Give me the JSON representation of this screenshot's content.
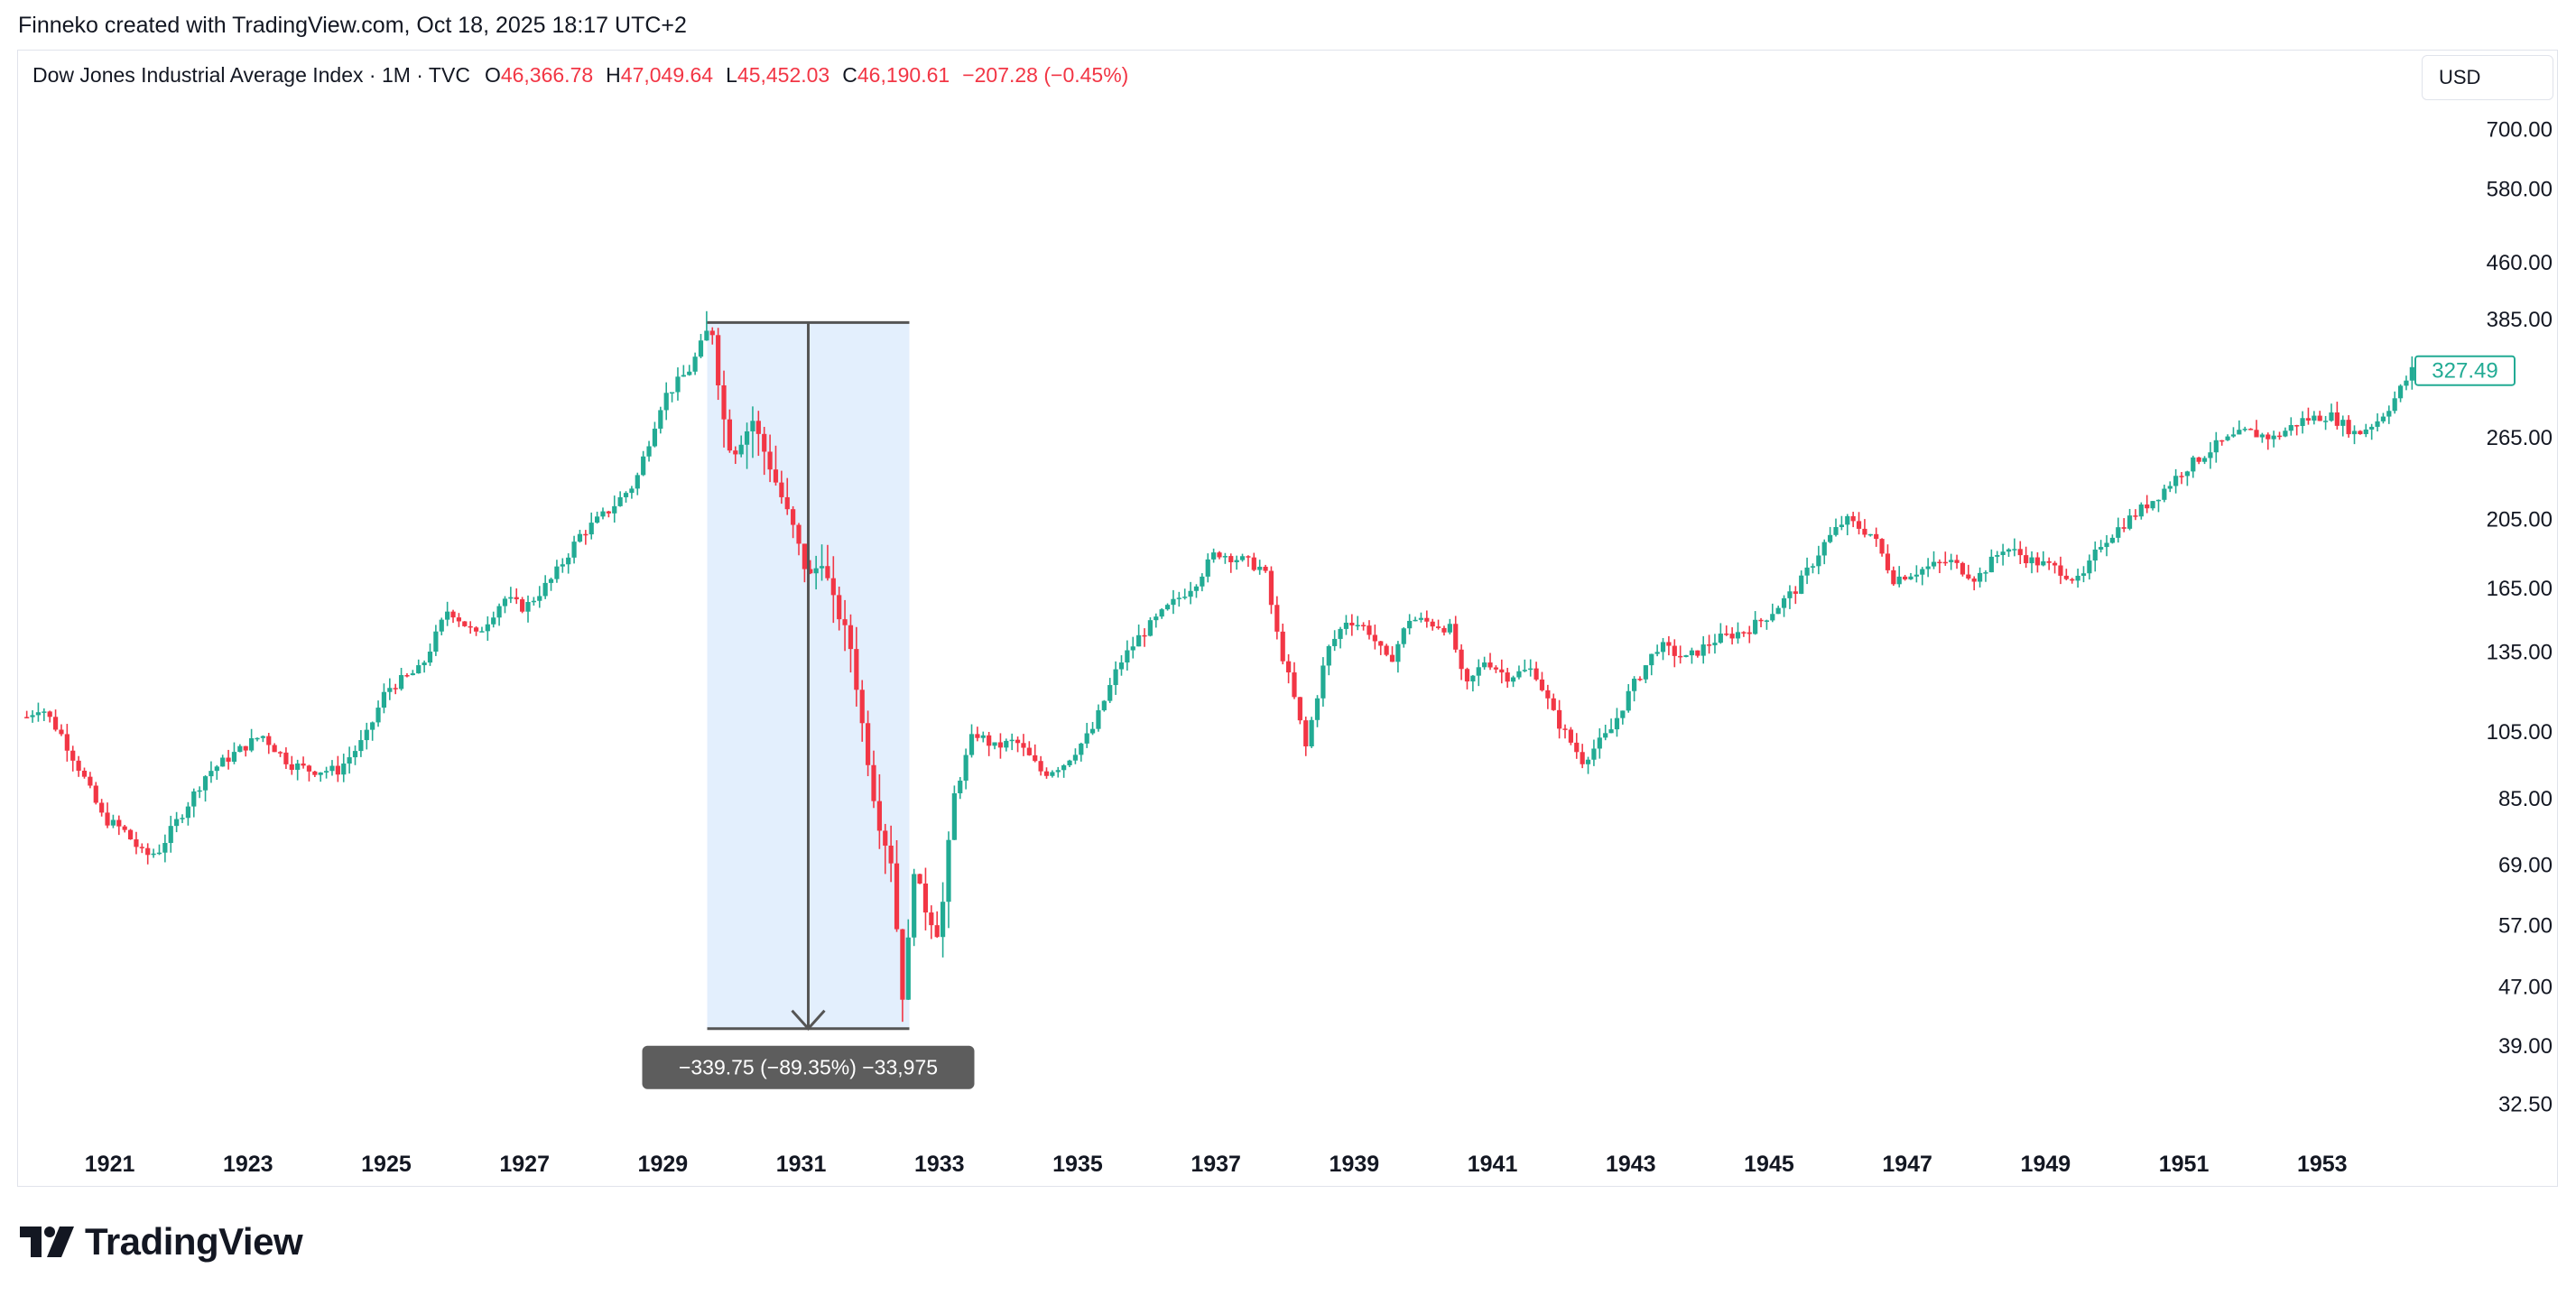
{
  "header": {
    "caption": "Finneko created with TradingView.com, Oct 18, 2025 18:17 UTC+2"
  },
  "legend": {
    "symbol": "Dow Jones Industrial Average Index · 1M · TVC",
    "open_label": "O",
    "open_value": "46,366.78",
    "high_label": "H",
    "high_value": "47,049.64",
    "low_label": "L",
    "low_value": "45,452.03",
    "close_label": "C",
    "close_value": "46,190.61",
    "change": "−207.28 (−0.45%)"
  },
  "currency_button": "USD",
  "brand": {
    "name": "TradingView",
    "logo_icon": "tradingview-logo-icon"
  },
  "measure": {
    "label": "−339.75 (−89.35%) −33,975",
    "from_date": 1929.72,
    "to_date": 1932.5,
    "from_value": 381.17,
    "to_value": 41.22
  },
  "colors": {
    "up": "#22ab94",
    "down": "#f23645",
    "measure_fill": "#e3effd",
    "measure_line": "#555555",
    "label_bg": "#5d5d5d",
    "price_tag": "#22ab94"
  },
  "chart_data": {
    "type": "candlestick",
    "scale": "log",
    "x_axis_ticks": [
      "1921",
      "1923",
      "1925",
      "1927",
      "1929",
      "1931",
      "1933",
      "1935",
      "1937",
      "1939",
      "1941",
      "1943",
      "1945",
      "1947",
      "1949",
      "1951",
      "1953"
    ],
    "y_axis_ticks": [
      "700.00",
      "580.00",
      "460.00",
      "385.00",
      "265.00",
      "205.00",
      "165.00",
      "135.00",
      "105.00",
      "85.00",
      "69.00",
      "57.00",
      "47.00",
      "39.00",
      "32.50"
    ],
    "last_price": "327.49",
    "xlim": [
      1919.7,
      1954.4
    ],
    "ylim": [
      29.7,
      770
    ],
    "path": [
      [
        1919.8,
        110
      ],
      [
        1920.0,
        114
      ],
      [
        1920.3,
        104
      ],
      [
        1920.6,
        92
      ],
      [
        1920.9,
        80
      ],
      [
        1921.2,
        77
      ],
      [
        1921.5,
        71
      ],
      [
        1921.7,
        72
      ],
      [
        1922.0,
        80
      ],
      [
        1922.4,
        92
      ],
      [
        1922.8,
        98
      ],
      [
        1923.2,
        104
      ],
      [
        1923.6,
        95
      ],
      [
        1923.9,
        93
      ],
      [
        1924.3,
        93
      ],
      [
        1924.7,
        103
      ],
      [
        1925.0,
        120
      ],
      [
        1925.5,
        128
      ],
      [
        1925.9,
        155
      ],
      [
        1926.3,
        142
      ],
      [
        1926.7,
        160
      ],
      [
        1927.0,
        155
      ],
      [
        1927.4,
        170
      ],
      [
        1927.8,
        195
      ],
      [
        1928.2,
        210
      ],
      [
        1928.6,
        230
      ],
      [
        1929.0,
        300
      ],
      [
        1929.4,
        330
      ],
      [
        1929.7,
        381
      ],
      [
        1929.85,
        290
      ],
      [
        1930.0,
        250
      ],
      [
        1930.3,
        280
      ],
      [
        1930.6,
        235
      ],
      [
        1930.9,
        198
      ],
      [
        1931.1,
        170
      ],
      [
        1931.3,
        180
      ],
      [
        1931.5,
        155
      ],
      [
        1931.7,
        140
      ],
      [
        1931.9,
        105
      ],
      [
        1932.1,
        80
      ],
      [
        1932.3,
        70
      ],
      [
        1932.5,
        42
      ],
      [
        1932.6,
        70
      ],
      [
        1932.8,
        60
      ],
      [
        1933.0,
        55
      ],
      [
        1933.2,
        85
      ],
      [
        1933.5,
        105
      ],
      [
        1933.8,
        100
      ],
      [
        1934.1,
        102
      ],
      [
        1934.5,
        92
      ],
      [
        1934.8,
        95
      ],
      [
        1935.2,
        105
      ],
      [
        1935.6,
        130
      ],
      [
        1935.9,
        142
      ],
      [
        1936.3,
        155
      ],
      [
        1936.7,
        168
      ],
      [
        1937.0,
        185
      ],
      [
        1937.4,
        180
      ],
      [
        1937.7,
        175
      ],
      [
        1937.9,
        140
      ],
      [
        1938.1,
        120
      ],
      [
        1938.3,
        100
      ],
      [
        1938.6,
        135
      ],
      [
        1938.9,
        150
      ],
      [
        1939.2,
        145
      ],
      [
        1939.5,
        130
      ],
      [
        1939.8,
        150
      ],
      [
        1940.1,
        148
      ],
      [
        1940.4,
        145
      ],
      [
        1940.6,
        120
      ],
      [
        1940.9,
        132
      ],
      [
        1941.2,
        125
      ],
      [
        1941.6,
        128
      ],
      [
        1941.9,
        110
      ],
      [
        1942.3,
        96
      ],
      [
        1942.7,
        105
      ],
      [
        1943.0,
        120
      ],
      [
        1943.4,
        138
      ],
      [
        1943.8,
        132
      ],
      [
        1944.2,
        140
      ],
      [
        1944.7,
        145
      ],
      [
        1945.0,
        152
      ],
      [
        1945.4,
        165
      ],
      [
        1945.8,
        190
      ],
      [
        1946.1,
        205
      ],
      [
        1946.5,
        195
      ],
      [
        1946.8,
        170
      ],
      [
        1947.2,
        175
      ],
      [
        1947.6,
        180
      ],
      [
        1948.0,
        170
      ],
      [
        1948.4,
        188
      ],
      [
        1948.8,
        180
      ],
      [
        1949.2,
        175
      ],
      [
        1949.5,
        168
      ],
      [
        1949.8,
        190
      ],
      [
        1950.2,
        205
      ],
      [
        1950.6,
        220
      ],
      [
        1951.0,
        240
      ],
      [
        1951.5,
        260
      ],
      [
        1951.9,
        270
      ],
      [
        1952.3,
        265
      ],
      [
        1952.7,
        280
      ],
      [
        1953.1,
        285
      ],
      [
        1953.5,
        268
      ],
      [
        1953.8,
        280
      ],
      [
        1954.0,
        295
      ],
      [
        1954.3,
        327.49
      ]
    ]
  }
}
